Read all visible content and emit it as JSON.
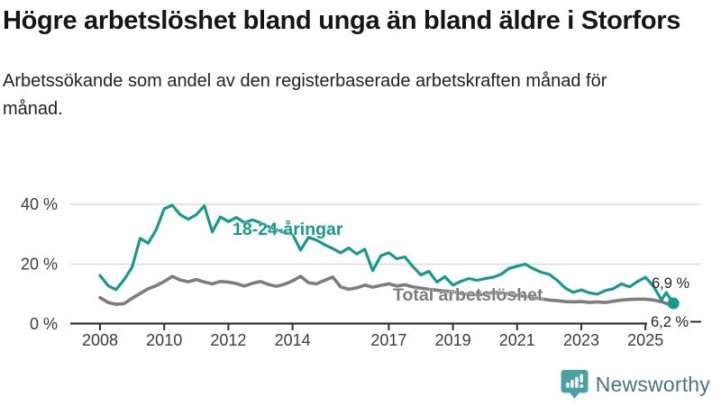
{
  "header": {
    "title": "Högre arbetslöshet bland unga än bland äldre i Storfors",
    "subtitle": "Arbetssökande som andel av den registerbaserade arbetskraften månad för månad."
  },
  "chart_data": {
    "type": "line",
    "title": "Högre arbetslöshet bland unga än bland äldre i Storfors",
    "subtitle": "Arbetssökande som andel av den registerbaserade arbetskraften månad för månad.",
    "xlabel": "",
    "ylabel": "",
    "grid": "horizontal",
    "legend_position": "inline-labels",
    "xlim": [
      2007.8,
      2026.1
    ],
    "ylim": [
      0,
      44
    ],
    "yticks": [
      {
        "value": 0,
        "label": "0 %"
      },
      {
        "value": 20,
        "label": "20 %"
      },
      {
        "value": 40,
        "label": "40 %"
      }
    ],
    "xticks": [
      {
        "value": 2008,
        "label": "2008"
      },
      {
        "value": 2010,
        "label": "2010"
      },
      {
        "value": 2012,
        "label": "2012"
      },
      {
        "value": 2014,
        "label": "2014"
      },
      {
        "value": 2017,
        "label": "2017"
      },
      {
        "value": 2019,
        "label": "2019"
      },
      {
        "value": 2021,
        "label": "2021"
      },
      {
        "value": 2023,
        "label": "2023"
      },
      {
        "value": 2025,
        "label": "2025"
      }
    ],
    "x": [
      2008,
      2008.25,
      2008.5,
      2008.75,
      2009,
      2009.25,
      2009.5,
      2009.75,
      2010,
      2010.25,
      2010.5,
      2010.75,
      2011,
      2011.25,
      2011.5,
      2011.75,
      2012,
      2012.25,
      2012.5,
      2012.75,
      2013,
      2013.25,
      2013.5,
      2013.75,
      2014,
      2014.25,
      2014.5,
      2014.75,
      2015,
      2015.25,
      2015.5,
      2015.75,
      2016,
      2016.25,
      2016.5,
      2016.75,
      2017,
      2017.25,
      2017.5,
      2017.75,
      2018,
      2018.25,
      2018.5,
      2018.75,
      2019,
      2019.25,
      2019.5,
      2019.75,
      2020,
      2020.25,
      2020.5,
      2020.75,
      2021,
      2021.25,
      2021.5,
      2021.75,
      2022,
      2022.25,
      2022.5,
      2022.75,
      2023,
      2023.25,
      2023.5,
      2023.75,
      2024,
      2024.25,
      2024.5,
      2024.75,
      2025,
      2025.25,
      2025.5,
      2025.65,
      2025.87
    ],
    "series": [
      {
        "name": "Total arbetslöshet",
        "color": "#7d7d7d",
        "end_label": "6,2 %",
        "end_value": 6.2,
        "end_dot": false,
        "values": [
          8.8,
          7.2,
          6.6,
          6.8,
          8.6,
          10.2,
          11.8,
          12.8,
          14.2,
          15.9,
          14.7,
          14.1,
          14.9,
          14.0,
          13.4,
          14.2,
          14.0,
          13.5,
          12.7,
          13.6,
          14.2,
          13.2,
          12.6,
          13.3,
          14.4,
          15.9,
          13.8,
          13.4,
          14.6,
          15.7,
          12.4,
          11.6,
          12.1,
          13.0,
          12.3,
          12.9,
          13.4,
          12.7,
          13.1,
          12.4,
          12.0,
          11.6,
          11.3,
          11.0,
          10.8,
          10.2,
          9.8,
          9.7,
          9.9,
          10.6,
          10.4,
          10.0,
          9.6,
          9.2,
          8.8,
          8.4,
          8.0,
          7.8,
          7.5,
          7.4,
          7.5,
          7.2,
          7.4,
          7.2,
          7.6,
          8.0,
          8.2,
          8.3,
          8.3,
          8.0,
          7.4,
          6.9,
          6.2
        ]
      },
      {
        "name": "18-24-åringar",
        "color": "#18998b",
        "end_label": "6,9 %",
        "end_value": 6.9,
        "end_dot": true,
        "values": [
          16.2,
          12.8,
          11.5,
          14.8,
          19.0,
          28.6,
          27.0,
          31.5,
          38.5,
          39.7,
          36.5,
          35.0,
          36.5,
          39.5,
          30.8,
          35.8,
          34.2,
          35.6,
          33.8,
          34.8,
          33.8,
          32.5,
          31.5,
          30.5,
          30.0,
          24.7,
          29.0,
          28.0,
          26.5,
          25.2,
          23.8,
          25.4,
          23.4,
          25.0,
          17.8,
          22.8,
          23.8,
          21.8,
          22.4,
          19.2,
          16.4,
          17.6,
          14.0,
          15.8,
          13.0,
          14.3,
          15.2,
          14.6,
          15.2,
          15.6,
          16.6,
          18.6,
          19.3,
          20.0,
          18.5,
          17.3,
          16.6,
          14.6,
          12.0,
          10.6,
          11.4,
          10.4,
          10.0,
          11.2,
          11.8,
          13.4,
          12.4,
          14.2,
          15.6,
          12.6,
          8.0,
          10.5,
          6.9
        ]
      }
    ]
  },
  "colors": {
    "young_line": "#18998b",
    "total_line": "#7d7d7d",
    "grid_line": "#dcdcdc",
    "axis_line": "#333333",
    "tick_label": "#3c3c3c",
    "value_label": "#222222",
    "brand_teal": "#4ba0a4",
    "brand_text": "#4d7286"
  },
  "footer": {
    "brand": "Newsworthy"
  }
}
